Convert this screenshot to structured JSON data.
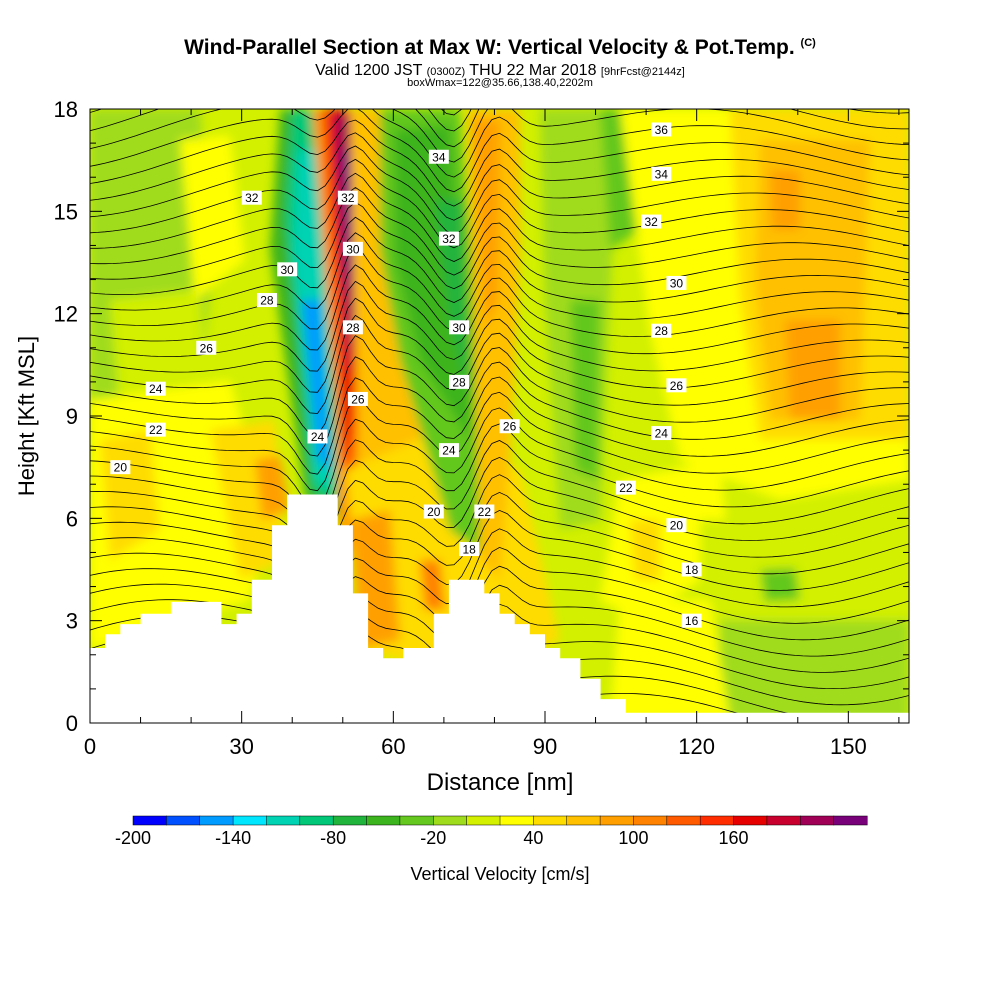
{
  "header": {
    "title": "Wind-Parallel Section at Max W: Vertical Velocity & Pot.Temp.",
    "copyright": "(C)",
    "valid_prefix": "Valid 1200 JST",
    "valid_utc": "(0300Z)",
    "valid_date": "THU 22 Mar 2018",
    "forecast": "[9hrFcst@2144z]",
    "boxinfo": "boxWmax=122@35.66,138.40,2202m"
  },
  "chart_data": {
    "type": "contour",
    "xlabel": "Distance [nm]",
    "ylabel": "Height [Kft MSL]",
    "xlim": [
      0,
      162
    ],
    "ylim": [
      0,
      18
    ],
    "xticks": [
      0,
      30,
      60,
      90,
      120,
      150
    ],
    "yticks": [
      0,
      3,
      6,
      9,
      12,
      15,
      18
    ],
    "terrain_kft": [
      [
        0,
        2.2
      ],
      [
        3,
        2.2
      ],
      [
        3,
        2.6
      ],
      [
        6,
        2.6
      ],
      [
        6,
        2.9
      ],
      [
        10,
        2.9
      ],
      [
        10,
        3.2
      ],
      [
        16,
        3.2
      ],
      [
        16,
        3.55
      ],
      [
        26,
        3.55
      ],
      [
        26,
        2.9
      ],
      [
        29,
        2.9
      ],
      [
        29,
        3.2
      ],
      [
        32,
        3.2
      ],
      [
        32,
        4.2
      ],
      [
        36,
        4.2
      ],
      [
        36,
        5.8
      ],
      [
        39,
        5.8
      ],
      [
        39,
        6.7
      ],
      [
        49,
        6.7
      ],
      [
        49,
        5.8
      ],
      [
        52,
        5.8
      ],
      [
        52,
        3.8
      ],
      [
        55,
        3.8
      ],
      [
        55,
        2.2
      ],
      [
        58,
        2.2
      ],
      [
        58,
        1.9
      ],
      [
        62,
        1.9
      ],
      [
        62,
        2.2
      ],
      [
        68,
        2.2
      ],
      [
        68,
        3.2
      ],
      [
        71,
        3.2
      ],
      [
        71,
        4.2
      ],
      [
        78,
        4.2
      ],
      [
        78,
        3.8
      ],
      [
        81,
        3.8
      ],
      [
        81,
        3.2
      ],
      [
        84,
        3.2
      ],
      [
        84,
        2.9
      ],
      [
        87,
        2.9
      ],
      [
        87,
        2.6
      ],
      [
        90,
        2.6
      ],
      [
        90,
        2.2
      ],
      [
        93,
        2.2
      ],
      [
        93,
        1.9
      ],
      [
        97,
        1.9
      ],
      [
        97,
        1.3
      ],
      [
        101,
        1.3
      ],
      [
        101,
        0.7
      ],
      [
        106,
        0.7
      ],
      [
        106,
        0.3
      ],
      [
        162,
        0.3
      ]
    ],
    "theta_labels": [
      {
        "text": "20",
        "x": 6,
        "y": 7.5
      },
      {
        "text": "22",
        "x": 13,
        "y": 8.6
      },
      {
        "text": "24",
        "x": 13,
        "y": 9.8
      },
      {
        "text": "26",
        "x": 23,
        "y": 11.0
      },
      {
        "text": "28",
        "x": 35,
        "y": 12.4
      },
      {
        "text": "30",
        "x": 39,
        "y": 13.3
      },
      {
        "text": "32",
        "x": 32,
        "y": 15.4
      },
      {
        "text": "24",
        "x": 45,
        "y": 8.4
      },
      {
        "text": "32",
        "x": 51,
        "y": 15.4
      },
      {
        "text": "30",
        "x": 52,
        "y": 13.9
      },
      {
        "text": "28",
        "x": 52,
        "y": 11.6
      },
      {
        "text": "26",
        "x": 53,
        "y": 9.5
      },
      {
        "text": "34",
        "x": 69,
        "y": 16.6
      },
      {
        "text": "32",
        "x": 71,
        "y": 14.2
      },
      {
        "text": "30",
        "x": 73,
        "y": 11.6
      },
      {
        "text": "28",
        "x": 73,
        "y": 10.0
      },
      {
        "text": "24",
        "x": 71,
        "y": 8.0
      },
      {
        "text": "20",
        "x": 68,
        "y": 6.2
      },
      {
        "text": "22",
        "x": 78,
        "y": 6.2
      },
      {
        "text": "18",
        "x": 75,
        "y": 5.1
      },
      {
        "text": "26",
        "x": 83,
        "y": 8.7
      },
      {
        "text": "36",
        "x": 113,
        "y": 17.4
      },
      {
        "text": "34",
        "x": 113,
        "y": 16.1
      },
      {
        "text": "32",
        "x": 111,
        "y": 14.7
      },
      {
        "text": "30",
        "x": 116,
        "y": 12.9
      },
      {
        "text": "28",
        "x": 113,
        "y": 11.5
      },
      {
        "text": "26",
        "x": 116,
        "y": 9.9
      },
      {
        "text": "24",
        "x": 113,
        "y": 8.5
      },
      {
        "text": "22",
        "x": 106,
        "y": 6.9
      },
      {
        "text": "20",
        "x": 116,
        "y": 5.8
      },
      {
        "text": "18",
        "x": 119,
        "y": 4.5
      },
      {
        "text": "16",
        "x": 119,
        "y": 3.0
      }
    ],
    "colorbar": {
      "label": "Vertical Velocity [cm/s]",
      "tick_labels": [
        "-200",
        "-140",
        "-80",
        "-20",
        "40",
        "100",
        "160"
      ],
      "colors": [
        "#0000ff",
        "#0050ff",
        "#009bff",
        "#00e6ff",
        "#00d2b4",
        "#00c878",
        "#20b43c",
        "#3cb41e",
        "#64c81e",
        "#a0dc1e",
        "#d2f000",
        "#ffff00",
        "#ffdc00",
        "#ffc000",
        "#ffa000",
        "#ff8200",
        "#ff5a00",
        "#ff2d00",
        "#e60000",
        "#c8002d",
        "#a00055",
        "#780078"
      ]
    }
  }
}
